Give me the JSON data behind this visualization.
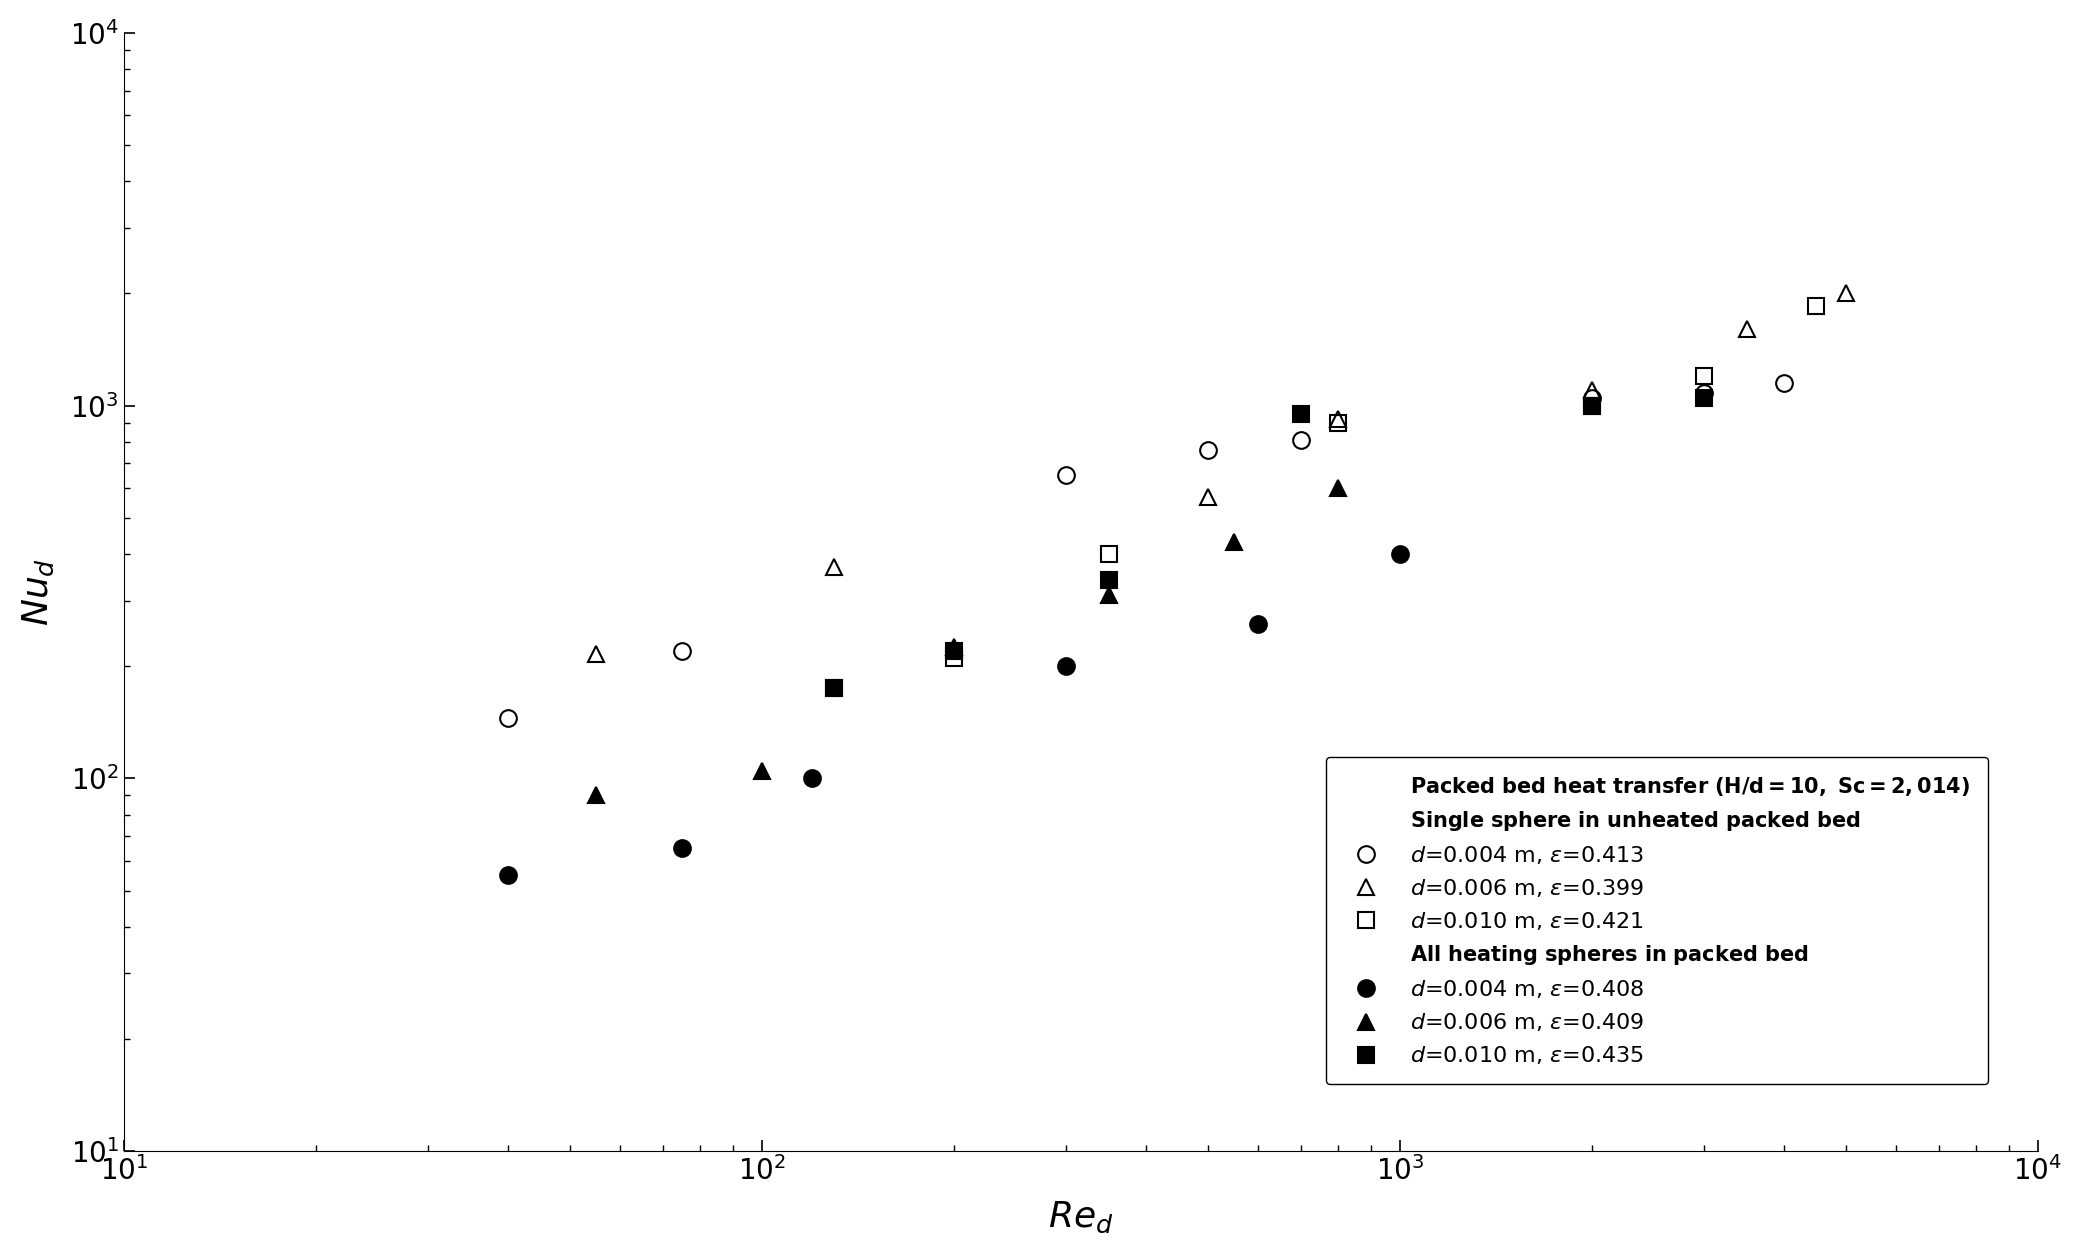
{
  "title": "",
  "xlabel": "$Re_d$",
  "ylabel": "$Nu_d$",
  "xlim": [
    10,
    10000
  ],
  "ylim": [
    10,
    10000
  ],
  "legend_title_bold": "Packed bed heat transfer ($H/d$=10, $Sc$=2,014)",
  "legend_subtitle1": "Single sphere in unheated packed bed",
  "legend_subtitle2": "All heating spheres in packed bed",
  "series": [
    {
      "label": "$d$=0.004 m, $\\varepsilon$=0.413",
      "marker": "o",
      "fillstyle": "none",
      "color": "black",
      "markersize": 12,
      "Re": [
        40,
        75,
        300,
        500,
        700,
        2000,
        3000,
        4000
      ],
      "Nu": [
        145,
        220,
        650,
        760,
        810,
        1050,
        1080,
        1150
      ]
    },
    {
      "label": "$d$=0.006 m, $\\varepsilon$=0.399",
      "marker": "^",
      "fillstyle": "none",
      "color": "black",
      "markersize": 12,
      "Re": [
        55,
        130,
        500,
        800,
        2000,
        3500,
        5000
      ],
      "Nu": [
        215,
        370,
        570,
        920,
        1100,
        1600,
        2000
      ]
    },
    {
      "label": "$d$=0.010 m, $\\varepsilon$=0.421",
      "marker": "s",
      "fillstyle": "none",
      "color": "black",
      "markersize": 12,
      "Re": [
        130,
        200,
        350,
        800,
        2000,
        3000,
        4500
      ],
      "Nu": [
        175,
        210,
        400,
        900,
        1000,
        1200,
        1850
      ]
    },
    {
      "label": "$d$=0.004 m, $\\varepsilon$=0.408",
      "marker": "o",
      "fillstyle": "full",
      "color": "black",
      "markersize": 12,
      "Re": [
        40,
        75,
        120,
        300,
        600,
        1000
      ],
      "Nu": [
        55,
        65,
        100,
        200,
        260,
        400
      ]
    },
    {
      "label": "$d$=0.006 m, $\\varepsilon$=0.409",
      "marker": "^",
      "fillstyle": "full",
      "color": "black",
      "markersize": 12,
      "Re": [
        55,
        100,
        200,
        350,
        550,
        800
      ],
      "Nu": [
        90,
        105,
        225,
        310,
        430,
        600
      ]
    },
    {
      "label": "$d$=0.010 m, $\\varepsilon$=0.435",
      "marker": "s",
      "fillstyle": "full",
      "color": "black",
      "markersize": 12,
      "Re": [
        130,
        200,
        350,
        700,
        2000,
        3000
      ],
      "Nu": [
        175,
        220,
        340,
        950,
        1000,
        1050
      ]
    }
  ]
}
